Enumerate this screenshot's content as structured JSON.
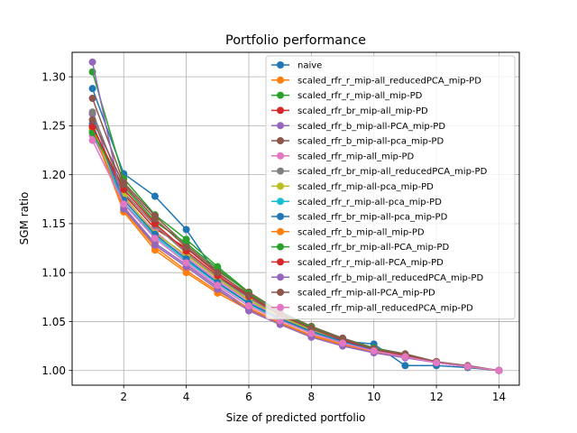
{
  "chart_data": {
    "type": "line",
    "title": "Portfolio performance",
    "xlabel": "Size of predicted portfolio",
    "ylabel": "SGM ratio",
    "xlim": [
      0.35,
      14.65
    ],
    "ylim": [
      0.985,
      1.325
    ],
    "xticks": [
      "2",
      "4",
      "6",
      "8",
      "10",
      "12",
      "14"
    ],
    "yticks": [
      "1.00",
      "1.05",
      "1.10",
      "1.15",
      "1.20",
      "1.25",
      "1.30"
    ],
    "grid": true,
    "legend_position": "upper right",
    "x": [
      1,
      2,
      3,
      4,
      5,
      6,
      7,
      8,
      9,
      10,
      11,
      12,
      13,
      14
    ],
    "series": [
      {
        "name": "naive",
        "color": "#1f77b4",
        "values": [
          1.288,
          1.201,
          1.178,
          1.144,
          1.097,
          1.074,
          1.057,
          1.04,
          1.03,
          1.027,
          1.005,
          1.005,
          1.003,
          1.0
        ]
      },
      {
        "name": "scaled_rfr_r_mip-all_reducedPCA_mip-PD",
        "color": "#ff7f0e",
        "values": [
          1.247,
          1.162,
          1.123,
          1.1,
          1.079,
          1.062,
          1.048,
          1.035,
          1.026,
          1.019,
          1.014,
          1.008,
          1.004,
          1.0
        ]
      },
      {
        "name": "scaled_rfr_r_mip-all_mip-PD",
        "color": "#2ca02c",
        "values": [
          1.305,
          1.196,
          1.159,
          1.134,
          1.106,
          1.08,
          1.06,
          1.045,
          1.033,
          1.023,
          1.016,
          1.009,
          1.004,
          1.0
        ]
      },
      {
        "name": "scaled_rfr_br_mip-all_mip-PD",
        "color": "#d62728",
        "values": [
          1.25,
          1.18,
          1.145,
          1.125,
          1.099,
          1.078,
          1.058,
          1.044,
          1.032,
          1.022,
          1.016,
          1.009,
          1.004,
          1.0
        ]
      },
      {
        "name": "scaled_rfr_b_mip-all-PCA_mip-PD",
        "color": "#9467bd",
        "values": [
          1.262,
          1.167,
          1.13,
          1.108,
          1.085,
          1.063,
          1.049,
          1.036,
          1.027,
          1.02,
          1.014,
          1.008,
          1.004,
          1.0
        ]
      },
      {
        "name": "scaled_rfr_b_mip-all-pca_mip-PD",
        "color": "#8c564b",
        "values": [
          1.278,
          1.192,
          1.158,
          1.128,
          1.102,
          1.08,
          1.06,
          1.045,
          1.033,
          1.023,
          1.017,
          1.009,
          1.005,
          1.0
        ]
      },
      {
        "name": "scaled_rfr_mip-all_mip-PD",
        "color": "#e377c2",
        "values": [
          1.24,
          1.176,
          1.142,
          1.116,
          1.092,
          1.071,
          1.054,
          1.041,
          1.031,
          1.022,
          1.015,
          1.008,
          1.004,
          1.0
        ]
      },
      {
        "name": "scaled_rfr_br_mip-all_reducedPCA_mip-PD",
        "color": "#7f7f7f",
        "values": [
          1.264,
          1.182,
          1.148,
          1.12,
          1.095,
          1.074,
          1.056,
          1.042,
          1.031,
          1.021,
          1.015,
          1.008,
          1.004,
          1.0
        ]
      },
      {
        "name": "scaled_rfr_mip-all-pca_mip-PD",
        "color": "#bcbd22",
        "values": [
          1.245,
          1.178,
          1.14,
          1.118,
          1.094,
          1.072,
          1.055,
          1.041,
          1.03,
          1.021,
          1.015,
          1.008,
          1.004,
          1.0
        ]
      },
      {
        "name": "scaled_rfr_r_mip-all-pca_mip-PD",
        "color": "#17becf",
        "values": [
          1.244,
          1.171,
          1.137,
          1.112,
          1.089,
          1.068,
          1.052,
          1.039,
          1.029,
          1.02,
          1.014,
          1.008,
          1.004,
          1.0
        ]
      },
      {
        "name": "scaled_rfr_br_mip-all-pca_mip-PD",
        "color": "#1f77b4",
        "values": [
          1.252,
          1.174,
          1.139,
          1.114,
          1.09,
          1.069,
          1.053,
          1.04,
          1.03,
          1.021,
          1.015,
          1.008,
          1.004,
          1.0
        ]
      },
      {
        "name": "scaled_rfr_b_mip-all_mip-PD",
        "color": "#ff7f0e",
        "values": [
          1.248,
          1.164,
          1.126,
          1.102,
          1.081,
          1.064,
          1.049,
          1.036,
          1.027,
          1.02,
          1.014,
          1.008,
          1.004,
          1.0
        ]
      },
      {
        "name": "scaled_rfr_br_mip-all-PCA_mip-PD",
        "color": "#2ca02c",
        "values": [
          1.243,
          1.188,
          1.152,
          1.13,
          1.104,
          1.079,
          1.059,
          1.044,
          1.032,
          1.023,
          1.016,
          1.009,
          1.004,
          1.0
        ]
      },
      {
        "name": "scaled_rfr_r_mip-all-PCA_mip-PD",
        "color": "#d62728",
        "values": [
          1.249,
          1.185,
          1.15,
          1.122,
          1.097,
          1.076,
          1.057,
          1.043,
          1.031,
          1.022,
          1.015,
          1.008,
          1.004,
          1.0
        ]
      },
      {
        "name": "scaled_rfr_b_mip-all_reducedPCA_mip-PD",
        "color": "#9467bd",
        "values": [
          1.315,
          1.165,
          1.128,
          1.106,
          1.083,
          1.061,
          1.047,
          1.034,
          1.025,
          1.018,
          1.013,
          1.008,
          1.004,
          1.0
        ]
      },
      {
        "name": "scaled_rfr_mip-all-PCA_mip-PD",
        "color": "#8c564b",
        "values": [
          1.256,
          1.19,
          1.155,
          1.126,
          1.1,
          1.077,
          1.058,
          1.043,
          1.032,
          1.022,
          1.016,
          1.009,
          1.004,
          1.0
        ]
      },
      {
        "name": "scaled_rfr_mip-all_reducedPCA_mip-PD",
        "color": "#e377c2",
        "values": [
          1.235,
          1.17,
          1.135,
          1.11,
          1.087,
          1.066,
          1.051,
          1.038,
          1.028,
          1.02,
          1.014,
          1.008,
          1.004,
          1.0
        ]
      }
    ]
  }
}
